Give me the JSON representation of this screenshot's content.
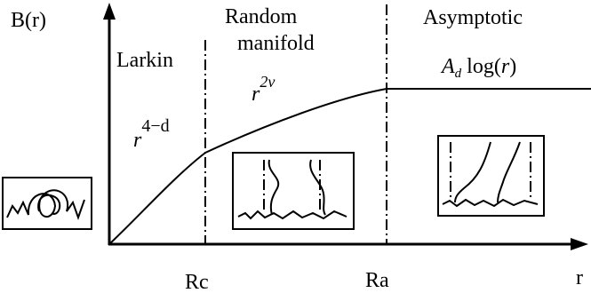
{
  "axes": {
    "y_label": "B(r)",
    "x_label": "r",
    "x_markers": [
      "Rc",
      "Ra"
    ]
  },
  "regions": [
    {
      "title": [
        "Larkin"
      ],
      "formula": {
        "base": "r",
        "sup": "4−d"
      }
    },
    {
      "title": [
        "Random",
        "manifold"
      ],
      "formula": {
        "base": "r",
        "sup": "2ν"
      }
    },
    {
      "title": [
        "Asymptotic"
      ],
      "formula": {
        "coef": "A",
        "sub": "d",
        "fn": "log(",
        "arg": "r",
        "close": ")"
      }
    }
  ]
}
